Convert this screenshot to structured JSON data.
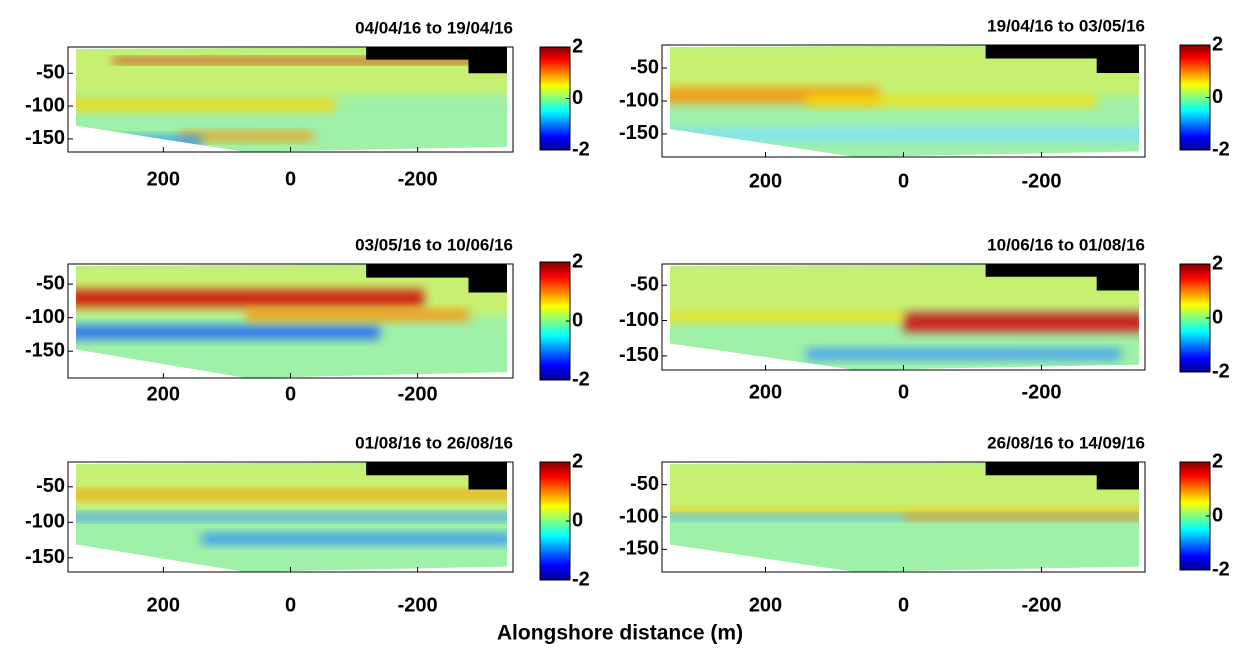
{
  "xlabel": "Alongshore distance (m)",
  "chart_data": [
    {
      "type": "heatmap",
      "title": "04/04/16 to 19/04/16",
      "xlim": [
        350,
        -350
      ],
      "xticks": [
        200,
        0,
        -200
      ],
      "ylim": [
        -10,
        -170
      ],
      "yticks": [
        -50,
        -100,
        -150
      ],
      "clim": [
        -2,
        2
      ],
      "cticks": [
        -2,
        0,
        2
      ]
    },
    {
      "type": "heatmap",
      "title": "19/04/16 to 03/05/16",
      "xlim": [
        350,
        -350
      ],
      "xticks": [
        200,
        0,
        -200
      ],
      "ylim": [
        -15,
        -185
      ],
      "yticks": [
        -50,
        -100,
        -150
      ],
      "clim": [
        -2,
        2
      ],
      "cticks": [
        -2,
        0,
        2
      ]
    },
    {
      "type": "heatmap",
      "title": "03/05/16 to 10/06/16",
      "xlim": [
        350,
        -350
      ],
      "xticks": [
        200,
        0,
        -200
      ],
      "ylim": [
        -20,
        -190
      ],
      "yticks": [
        -50,
        -100,
        -150
      ],
      "clim": [
        -2,
        2
      ],
      "cticks": [
        -2,
        0,
        2
      ]
    },
    {
      "type": "heatmap",
      "title": "10/06/16 to 01/08/16",
      "xlim": [
        350,
        -350
      ],
      "xticks": [
        200,
        0,
        -200
      ],
      "ylim": [
        -20,
        -170
      ],
      "yticks": [
        -50,
        -100,
        -150
      ],
      "clim": [
        -2,
        2
      ],
      "cticks": [
        -2,
        0,
        2
      ]
    },
    {
      "type": "heatmap",
      "title": "01/08/16 to 26/08/16",
      "xlim": [
        350,
        -350
      ],
      "xticks": [
        200,
        0,
        -200
      ],
      "ylim": [
        -15,
        -170
      ],
      "yticks": [
        -50,
        -100,
        -150
      ],
      "clim": [
        -2,
        2
      ],
      "cticks": [
        -2,
        0,
        2
      ]
    },
    {
      "type": "heatmap",
      "title": "26/08/16 to 14/09/16",
      "xlim": [
        350,
        -350
      ],
      "xticks": [
        200,
        0,
        -200
      ],
      "ylim": [
        -15,
        -185
      ],
      "yticks": [
        -50,
        -100,
        -150
      ],
      "clim": [
        -2,
        2
      ],
      "cticks": [
        -2,
        0,
        2
      ]
    }
  ]
}
